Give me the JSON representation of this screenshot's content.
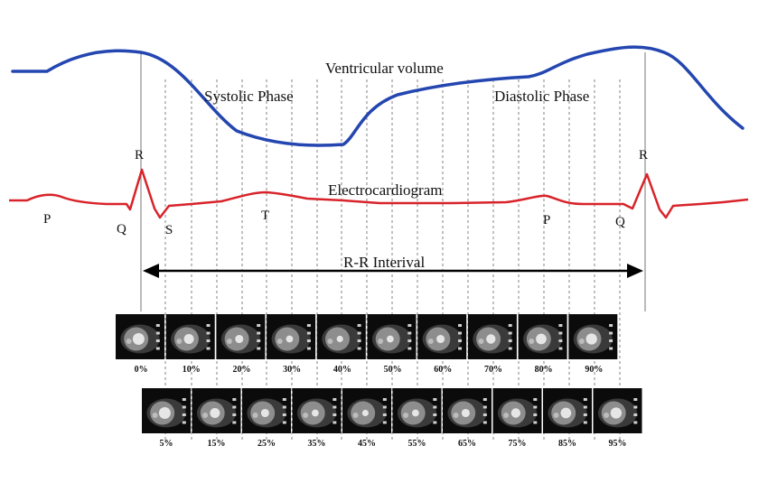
{
  "labels": {
    "ventricular_volume": "Ventricular volume",
    "systolic_phase": "Systolic Phase",
    "diastolic_phase": "Diastolic Phase",
    "electrocardiogram": "Electrocardiogram",
    "rr_interval": "R-R Interival"
  },
  "ecg_waves": {
    "p1": "P",
    "q1": "Q",
    "r1": "R",
    "s1": "S",
    "t1": "T",
    "p2": "P",
    "q2": "Q",
    "r2": "R"
  },
  "row1_phases": [
    "0%",
    "10%",
    "20%",
    "30%",
    "40%",
    "50%",
    "60%",
    "70%",
    "80%",
    "90%"
  ],
  "row2_phases": [
    "5%",
    "15%",
    "25%",
    "35%",
    "45%",
    "55%",
    "65%",
    "75%",
    "85%",
    "95%"
  ],
  "colors": {
    "volume_curve": "#2446b0",
    "ecg_curve": "#d8232a",
    "arrow": "#000000",
    "guide_line": "#777777"
  }
}
